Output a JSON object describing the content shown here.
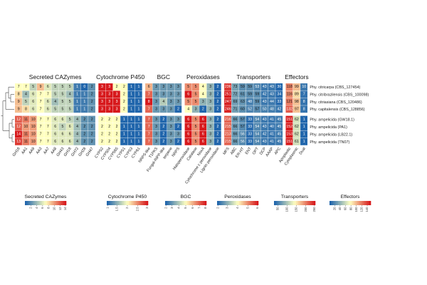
{
  "chart_data": {
    "type": "heatmap",
    "colormap": {
      "low": "#2166ac",
      "mid": "#ffffbf",
      "high": "#d7191c"
    },
    "rows": [
      "Phy. citricarpa (CBS_127454)",
      "Phy. citribrazilensis (CBS_100098)",
      "Phy. citriasiana (CBS_120486)",
      "Phy. capitalensis (CBS_128856)",
      "Phy. ampelicida (GW18.1)",
      "Phy. ampelicida (PA1)",
      "Phy. ampelicida (LB22.1)",
      "Phy. ampelicida (TN07)"
    ],
    "groups": [
      {
        "name": "Secreted CAZymes",
        "columns": [
          "GH16",
          "AA1",
          "AA9",
          "AA3",
          "AA7",
          "AA8",
          "GH43",
          "GH18",
          "GH72",
          "GH28",
          "GH47"
        ],
        "values": [
          [
            7,
            7,
            5,
            9,
            6,
            5,
            5,
            5,
            1,
            0,
            2
          ],
          [
            8,
            4,
            6,
            7,
            7,
            5,
            5,
            4,
            1,
            1,
            2
          ],
          [
            9,
            5,
            6,
            7,
            6,
            4,
            5,
            5,
            1,
            1,
            2
          ],
          [
            9,
            8,
            6,
            7,
            6,
            5,
            5,
            5,
            1,
            1,
            2
          ],
          [
            12,
            11,
            10,
            7,
            7,
            6,
            6,
            5,
            4,
            2,
            2
          ],
          [
            12,
            10,
            10,
            7,
            7,
            6,
            5,
            6,
            4,
            2,
            2
          ],
          [
            14,
            11,
            10,
            7,
            7,
            6,
            6,
            6,
            4,
            2,
            2
          ],
          [
            13,
            11,
            10,
            7,
            7,
            6,
            6,
            6,
            4,
            2,
            2
          ]
        ],
        "legend_ticks": [
          "2",
          "4",
          "6",
          "8",
          "10",
          "12",
          "14"
        ],
        "range": [
          0,
          14
        ]
      },
      {
        "name": "Cytochrome P450",
        "columns": [
          "CYP52",
          "CYP504",
          "CYP565",
          "CYP51",
          "CYP53",
          "CYP61"
        ],
        "values": [
          [
            3,
            3,
            2,
            2,
            1,
            1
          ],
          [
            3,
            3,
            3,
            2,
            1,
            1
          ],
          [
            3,
            3,
            3,
            2,
            1,
            1
          ],
          [
            3,
            3,
            3,
            2,
            1,
            1
          ],
          [
            2,
            2,
            2,
            1,
            1,
            1
          ],
          [
            2,
            2,
            2,
            1,
            1,
            1
          ],
          [
            2,
            2,
            2,
            1,
            1,
            1
          ],
          [
            2,
            2,
            2,
            1,
            1,
            1
          ]
        ],
        "legend_ticks": [
          "1",
          "1.5",
          "2",
          "2.5",
          "3"
        ],
        "range": [
          1,
          3
        ]
      },
      {
        "name": "BGC",
        "columns": [
          "NRPS-like",
          "T1PKS",
          "Fungal-RiPP-like",
          "terpene",
          "NRPS"
        ],
        "values": [
          [
            6,
            3,
            3,
            3,
            3
          ],
          [
            7,
            3,
            3,
            3,
            3
          ],
          [
            8,
            3,
            4,
            3,
            3
          ],
          [
            7,
            3,
            3,
            3,
            2
          ],
          [
            7,
            3,
            2,
            3,
            3
          ],
          [
            7,
            3,
            2,
            3,
            2
          ],
          [
            7,
            3,
            2,
            3,
            3
          ],
          [
            7,
            3,
            2,
            3,
            2
          ]
        ],
        "legend_ticks": [
          "2",
          "3",
          "4",
          "5",
          "6",
          "7",
          "8"
        ],
        "range": [
          2,
          8
        ]
      },
      {
        "name": "Peroxidases",
        "columns": [
          "Haloperoxidase",
          "Catalase",
          "NoxA",
          "Cytochrome c peroxidase",
          "Lignin peroxidase"
        ],
        "values": [
          [
            5,
            5,
            4,
            3,
            2
          ],
          [
            6,
            5,
            4,
            3,
            2
          ],
          [
            5,
            5,
            3,
            3,
            2
          ],
          [
            4,
            3,
            2,
            3,
            2
          ],
          [
            6,
            5,
            6,
            3,
            2
          ],
          [
            6,
            5,
            6,
            3,
            2
          ],
          [
            6,
            5,
            6,
            3,
            2
          ],
          [
            6,
            5,
            6,
            3,
            2
          ]
        ],
        "legend_ticks": [
          "2",
          "3",
          "4",
          "5",
          "6"
        ],
        "range": [
          2,
          6
        ]
      },
      {
        "name": "Transporters",
        "columns": [
          "MFS",
          "ABC",
          "ER-HT",
          "ENT",
          "OPT",
          "DCP",
          "AAAP",
          "APC"
        ],
        "values": [
          [
            236,
            73,
            59,
            59,
            53,
            43,
            43,
            30
          ],
          [
            251,
            72,
            61,
            59,
            59,
            42,
            43,
            34
          ],
          [
            247,
            69,
            63,
            48,
            59,
            43,
            44,
            33
          ],
          [
            246,
            71,
            60,
            52,
            57,
            50,
            48,
            42
          ],
          [
            216,
            66,
            57,
            33,
            54,
            43,
            41,
            45
          ],
          [
            215,
            66,
            57,
            33,
            54,
            43,
            40,
            45
          ],
          [
            213,
            66,
            56,
            33,
            54,
            42,
            41,
            45
          ],
          [
            215,
            66,
            56,
            33,
            54,
            43,
            41,
            45
          ]
        ],
        "legend_ticks": [
          "50",
          "100",
          "150",
          "200",
          "250"
        ],
        "range": [
          30,
          251
        ]
      },
      {
        "name": "Effectors",
        "columns": [
          "Apoplastic",
          "Cytoplasmic",
          "Dual"
        ],
        "values": [
          [
            118,
            99,
            10
          ],
          [
            116,
            89,
            7
          ],
          [
            121,
            98,
            8
          ],
          [
            132,
            97,
            8
          ],
          [
            151,
            62,
            1
          ],
          [
            152,
            62,
            1
          ],
          [
            153,
            62,
            1
          ],
          [
            151,
            61,
            1
          ]
        ],
        "legend_ticks": [
          "20",
          "40",
          "60",
          "80",
          "100",
          "120",
          "140"
        ],
        "range": [
          1,
          153
        ]
      }
    ]
  }
}
